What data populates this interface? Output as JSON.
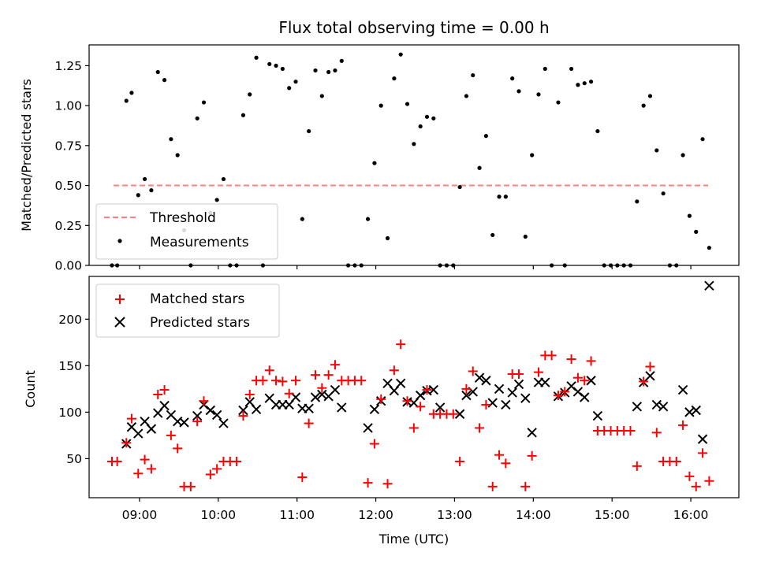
{
  "chart_data": {
    "title": "Flux total observing time = 0.00 h",
    "xlabel": "Time (UTC)",
    "xtick_labels": [
      "09:00",
      "10:00",
      "11:00",
      "12:00",
      "13:00",
      "14:00",
      "15:00",
      "16:00"
    ],
    "xlim_hours": [
      8.36,
      16.61
    ],
    "top": {
      "type": "scatter",
      "ylabel": "Matched/Predicted stars",
      "ylim": [
        0,
        1.38
      ],
      "yticks": [
        "0.00",
        "0.25",
        "0.50",
        "0.75",
        "1.00",
        "1.25"
      ],
      "threshold": {
        "name": "Threshold",
        "value": 0.5,
        "color": "#ff8080",
        "x_range_hours": [
          8.67,
          16.22
        ]
      },
      "legend": {
        "placement": "lower-left",
        "entries": [
          "Threshold",
          "Measurements"
        ]
      },
      "series": [
        {
          "name": "Measurements",
          "color": "#000000",
          "x": [
            "08:39",
            "08:43",
            "08:50",
            "08:54",
            "08:59",
            "09:04",
            "09:09",
            "09:14",
            "09:19",
            "09:24",
            "09:29",
            "09:34",
            "09:39",
            "09:44",
            "09:49",
            "09:54",
            "09:59",
            "10:04",
            "10:09",
            "10:14",
            "10:19",
            "10:24",
            "10:29",
            "10:34",
            "10:39",
            "10:44",
            "10:49",
            "10:54",
            "10:59",
            "11:04",
            "11:09",
            "11:14",
            "11:19",
            "11:24",
            "11:29",
            "11:34",
            "11:39",
            "11:44",
            "11:49",
            "11:54",
            "11:59",
            "12:04",
            "12:09",
            "12:14",
            "12:19",
            "12:24",
            "12:29",
            "12:34",
            "12:39",
            "12:44",
            "12:49",
            "12:54",
            "12:59",
            "13:04",
            "13:09",
            "13:14",
            "13:19",
            "13:24",
            "13:29",
            "13:34",
            "13:39",
            "13:44",
            "13:49",
            "13:54",
            "13:59",
            "14:04",
            "14:09",
            "14:14",
            "14:19",
            "14:24",
            "14:29",
            "14:34",
            "14:39",
            "14:44",
            "14:49",
            "14:54",
            "14:59",
            "15:04",
            "15:09",
            "15:14",
            "15:19",
            "15:24",
            "15:29",
            "15:34",
            "15:39",
            "15:44",
            "15:49",
            "15:54",
            "15:59",
            "16:04",
            "16:09",
            "16:14"
          ],
          "y": [
            0.0,
            0.0,
            1.03,
            1.08,
            0.44,
            0.54,
            0.47,
            1.21,
            1.16,
            0.79,
            0.69,
            0.22,
            0.0,
            0.92,
            1.02,
            0.33,
            0.41,
            0.54,
            0.0,
            0.0,
            0.94,
            1.07,
            1.3,
            0.0,
            1.26,
            1.25,
            1.23,
            1.11,
            1.15,
            0.29,
            0.84,
            1.22,
            1.06,
            1.21,
            1.22,
            1.28,
            0.0,
            0.0,
            0.0,
            0.29,
            0.64,
            1.0,
            0.17,
            1.17,
            1.32,
            1.01,
            0.76,
            0.87,
            0.93,
            0.92,
            0.0,
            0.0,
            0.0,
            0.49,
            1.06,
            1.19,
            0.61,
            0.81,
            0.19,
            0.43,
            0.43,
            1.17,
            1.09,
            0.18,
            0.69,
            1.07,
            1.23,
            0.0,
            1.02,
            0.0,
            1.23,
            1.13,
            1.14,
            1.15,
            0.84,
            0.0,
            0.0,
            0.0,
            0.0,
            0.0,
            0.4,
            1.0,
            1.06,
            0.72,
            0.45,
            0.0,
            0.0,
            0.69,
            0.31,
            0.21,
            0.79,
            0.11
          ]
        }
      ]
    },
    "bottom": {
      "type": "scatter",
      "ylabel": "Count",
      "ylim": [
        8,
        246
      ],
      "yticks": [
        "50",
        "100",
        "150",
        "200"
      ],
      "legend": {
        "placement": "top-left",
        "entries": [
          "Matched stars",
          "Predicted stars"
        ]
      },
      "series": [
        {
          "name": "Matched stars",
          "marker": "+",
          "color": "#ff0000",
          "x": [
            "08:39",
            "08:43",
            "08:50",
            "08:54",
            "08:59",
            "09:04",
            "09:09",
            "09:14",
            "09:19",
            "09:24",
            "09:29",
            "09:34",
            "09:39",
            "09:44",
            "09:49",
            "09:54",
            "09:59",
            "10:04",
            "10:09",
            "10:14",
            "10:19",
            "10:24",
            "10:29",
            "10:34",
            "10:39",
            "10:44",
            "10:49",
            "10:54",
            "10:59",
            "11:04",
            "11:09",
            "11:14",
            "11:19",
            "11:24",
            "11:29",
            "11:34",
            "11:39",
            "11:44",
            "11:49",
            "11:54",
            "11:59",
            "12:04",
            "12:09",
            "12:14",
            "12:19",
            "12:24",
            "12:29",
            "12:34",
            "12:39",
            "12:44",
            "12:49",
            "12:54",
            "12:59",
            "13:04",
            "13:09",
            "13:14",
            "13:19",
            "13:24",
            "13:29",
            "13:34",
            "13:39",
            "13:44",
            "13:49",
            "13:54",
            "13:59",
            "14:04",
            "14:09",
            "14:14",
            "14:19",
            "14:24",
            "14:29",
            "14:34",
            "14:39",
            "14:44",
            "14:49",
            "14:54",
            "14:59",
            "15:04",
            "15:09",
            "15:14",
            "15:19",
            "15:24",
            "15:29",
            "15:34",
            "15:39",
            "15:44",
            "15:49",
            "15:54",
            "15:59",
            "16:04",
            "16:09",
            "16:14"
          ],
          "y": [
            47,
            47,
            67,
            93,
            34,
            49,
            39,
            119,
            124,
            75,
            61,
            20,
            20,
            90,
            112,
            33,
            39,
            47,
            47,
            47,
            96,
            119,
            134,
            134,
            145,
            134,
            133,
            120,
            134,
            30,
            88,
            140,
            126,
            140,
            151,
            134,
            134,
            134,
            134,
            24,
            66,
            114,
            23,
            145,
            173,
            112,
            83,
            106,
            124,
            98,
            98,
            98,
            98,
            47,
            125,
            144,
            83,
            108,
            20,
            54,
            45,
            141,
            141,
            20,
            53,
            143,
            161,
            161,
            118,
            122,
            157,
            137,
            134,
            155,
            80,
            80,
            80,
            80,
            80,
            80,
            42,
            133,
            149,
            78,
            47,
            47,
            47,
            86,
            31,
            20,
            56,
            26
          ]
        },
        {
          "name": "Predicted stars",
          "marker": "x",
          "color": "#000000",
          "x": [
            "08:50",
            "08:54",
            "08:59",
            "09:04",
            "09:09",
            "09:14",
            "09:19",
            "09:24",
            "09:29",
            "09:34",
            "09:44",
            "09:49",
            "09:54",
            "09:59",
            "10:04",
            "10:19",
            "10:24",
            "10:29",
            "10:39",
            "10:44",
            "10:49",
            "10:54",
            "10:59",
            "11:04",
            "11:09",
            "11:14",
            "11:19",
            "11:24",
            "11:29",
            "11:34",
            "11:54",
            "11:59",
            "12:04",
            "12:09",
            "12:14",
            "12:19",
            "12:24",
            "12:29",
            "12:34",
            "12:39",
            "12:44",
            "12:49",
            "13:04",
            "13:09",
            "13:14",
            "13:19",
            "13:24",
            "13:29",
            "13:34",
            "13:39",
            "13:44",
            "13:49",
            "13:54",
            "13:59",
            "14:04",
            "14:09",
            "14:19",
            "14:24",
            "14:29",
            "14:34",
            "14:39",
            "14:44",
            "14:49",
            "15:19",
            "15:24",
            "15:29",
            "15:34",
            "15:39",
            "15:54",
            "15:59",
            "16:04",
            "16:09",
            "16:14"
          ],
          "y": [
            66,
            84,
            77,
            90,
            82,
            99,
            107,
            97,
            90,
            89,
            96,
            108,
            102,
            97,
            88,
            102,
            111,
            103,
            115,
            108,
            108,
            108,
            116,
            104,
            104,
            116,
            119,
            117,
            124,
            105,
            83,
            103,
            112,
            131,
            123,
            131,
            111,
            110,
            118,
            123,
            124,
            105,
            98,
            118,
            122,
            137,
            134,
            110,
            125,
            108,
            121,
            130,
            115,
            78,
            132,
            132,
            117,
            121,
            128,
            122,
            116,
            134,
            96,
            106,
            132,
            139,
            108,
            106,
            124,
            100,
            102,
            71,
            236
          ]
        }
      ]
    }
  }
}
